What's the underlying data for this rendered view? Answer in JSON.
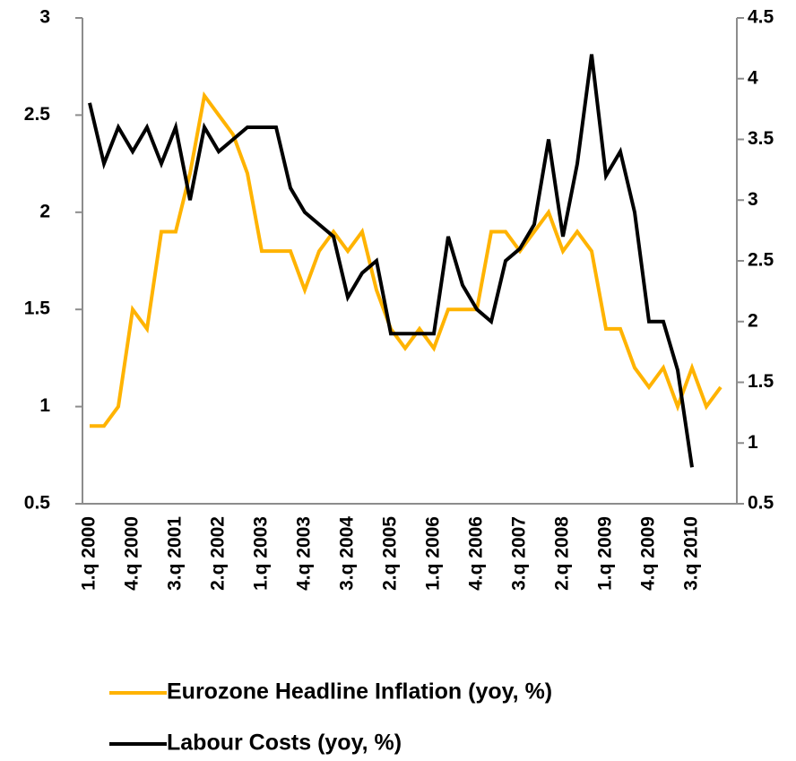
{
  "chart_data": {
    "type": "line",
    "categories": [
      "1.q 2000",
      null,
      null,
      "4.q 2000",
      null,
      null,
      "3.q 2001",
      null,
      null,
      "2.q 2002",
      null,
      null,
      "1.q 2003",
      null,
      null,
      "4.q 2003",
      null,
      null,
      "3.q 2004",
      null,
      null,
      "2.q 2005",
      null,
      null,
      "1.q 2006",
      null,
      null,
      "4.q 2006",
      null,
      null,
      "3.q 2007",
      null,
      null,
      "2.q 2008",
      null,
      null,
      "1.q 2009",
      null,
      null,
      "4.q 2009",
      null,
      null,
      "3.q 2010",
      null,
      null
    ],
    "series": [
      {
        "name": "Eurozone Headline Inflation (yoy, %)",
        "color": "#ffb300",
        "values": [
          0.9,
          0.9,
          1.0,
          1.5,
          1.4,
          1.9,
          1.9,
          2.2,
          2.6,
          2.5,
          2.4,
          2.2,
          1.8,
          1.8,
          1.8,
          1.6,
          1.8,
          1.9,
          1.8,
          1.9,
          1.6,
          1.4,
          1.3,
          1.4,
          1.3,
          1.5,
          1.5,
          1.5,
          1.9,
          1.9,
          1.8,
          1.9,
          2.0,
          1.8,
          1.9,
          1.8,
          1.4,
          1.4,
          1.2,
          1.1,
          1.2,
          1.0,
          1.2,
          1.0,
          1.1
        ]
      },
      {
        "name": "Labour Costs (yoy, %)",
        "color": "#000000",
        "axis": "y2",
        "values": [
          3.8,
          3.3,
          3.6,
          3.4,
          3.6,
          3.3,
          3.6,
          3.0,
          3.6,
          3.4,
          3.5,
          3.6,
          3.6,
          3.6,
          3.1,
          2.9,
          2.8,
          2.7,
          2.2,
          2.4,
          2.5,
          1.9,
          1.9,
          1.9,
          1.9,
          2.7,
          2.3,
          2.1,
          2.0,
          2.5,
          2.6,
          2.8,
          3.5,
          2.7,
          3.3,
          4.2,
          3.2,
          3.4,
          2.9,
          2.0,
          2.0,
          1.6,
          0.8,
          null,
          null
        ]
      }
    ],
    "ylim": [
      0.5,
      3
    ],
    "yticks": [
      0.5,
      1,
      1.5,
      2,
      2.5,
      3
    ],
    "y2lim": [
      0.5,
      4.5
    ],
    "y2ticks": [
      0.5,
      1,
      1.5,
      2,
      2.5,
      3,
      3.5,
      4,
      4.5
    ]
  }
}
